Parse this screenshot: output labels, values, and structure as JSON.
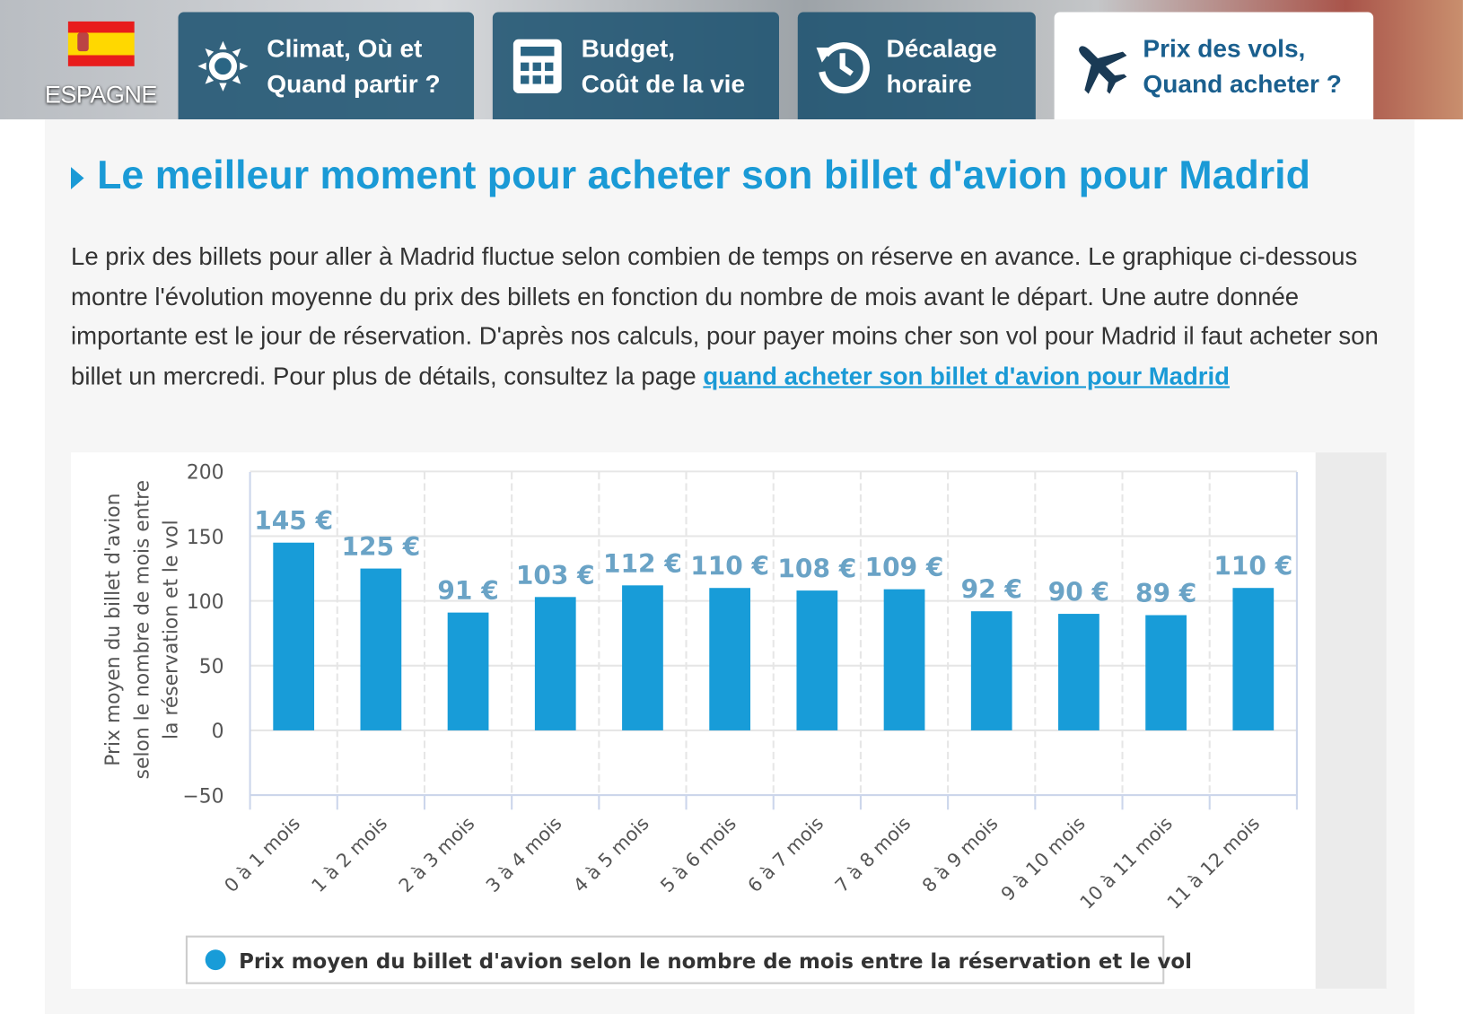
{
  "header": {
    "country": "ESPAGNE",
    "tabs": [
      {
        "label": "Climat, Où et\nQuand partir ?",
        "icon": "sun-icon"
      },
      {
        "label": "Budget,\nCoût de la vie",
        "icon": "calculator-icon"
      },
      {
        "label": "Décalage\nhoraire",
        "icon": "clock-history-icon"
      },
      {
        "label": "Prix des vols,\nQuand acheter ?",
        "icon": "plane-icon",
        "active": true
      }
    ]
  },
  "main": {
    "title": "Le meilleur moment pour acheter son billet d'avion pour Madrid",
    "paragraph": "Le prix des billets pour aller à Madrid fluctue selon combien de temps on réserve en avance. Le graphique ci-dessous montre l'évolution moyenne du prix des billets en fonction du nombre de mois avant le départ. Une autre donnée importante est le jour de réservation. D'après nos calculs, pour payer moins cher son vol pour Madrid il faut acheter son billet un mercredi. Pour plus de détails, consultez la page ",
    "link": "quand acheter son billet d'avion pour Madrid"
  },
  "chart_data": {
    "type": "bar",
    "categories": [
      "0 à 1 mois",
      "1 à 2 mois",
      "2 à 3 mois",
      "3 à 4 mois",
      "4 à 5 mois",
      "5 à 6 mois",
      "6 à 7 mois",
      "7 à 8 mois",
      "8 à 9 mois",
      "9 à 10 mois",
      "10 à 11 mois",
      "11 à 12 mois"
    ],
    "values": [
      145,
      125,
      91,
      103,
      112,
      110,
      108,
      109,
      92,
      90,
      89,
      110
    ],
    "data_labels": [
      "145 €",
      "125 €",
      "91 €",
      "103 €",
      "112 €",
      "110 €",
      "108 €",
      "109 €",
      "92 €",
      "90 €",
      "89 €",
      "110 €"
    ],
    "ylabel": "Prix moyen du billet d'avion selon le nombre de mois entre la réservation et le vol",
    "ylabel_lines": [
      "Prix moyen du billet d'avion",
      "selon le nombre de mois entre",
      "la réservation et le vol"
    ],
    "yticks": [
      200,
      150,
      100,
      50,
      0,
      -50
    ],
    "ylim": [
      -50,
      200
    ],
    "legend": "Prix moyen du billet d'avion selon le nombre de mois entre la réservation et le vol",
    "legend_position": "bottom",
    "color": "#189cd8",
    "label_color": "#6aa3c6"
  }
}
